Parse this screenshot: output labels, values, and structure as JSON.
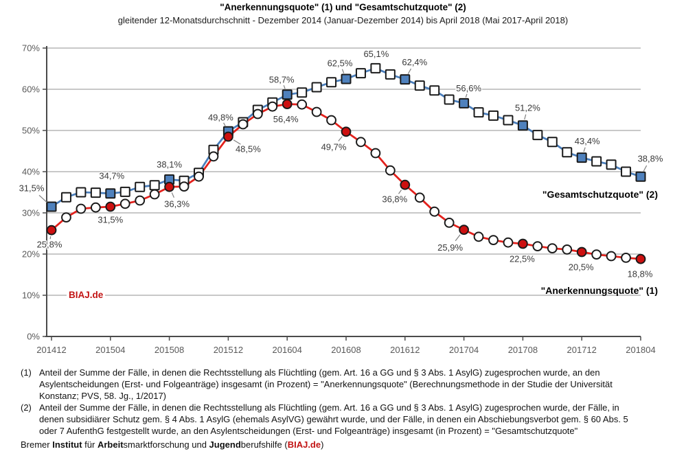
{
  "title": "\"Anerkennungsquote\" (1) und \"Gesamtschutzquote\" (2)",
  "subtitle": "gleitender 12-Monatsdurchschnitt - Dezember 2014 (Januar-Dezember 2014) bis April 2018 (Mai 2017-April 2018)",
  "watermark": "BIAJ.de",
  "series_labels": {
    "gesamtschutzquote": "\"Gesamtschutzquote\" (2)",
    "anerkennungsquote": "\"Anerkennungsquote\" (1)"
  },
  "colors": {
    "blue_line": "#4a7ebb",
    "blue_fill": "#4f81bd",
    "red_line": "#e3211c",
    "red_fill": "#cd1010",
    "grid": "#a6a6a6",
    "axis": "#4a4a4a",
    "axis_text": "#595959",
    "label_text": "#3a3a3a",
    "accent_red": "#c21313"
  },
  "chart_data": {
    "type": "line",
    "x": [
      "201412",
      "201501",
      "201502",
      "201503",
      "201504",
      "201505",
      "201506",
      "201507",
      "201508",
      "201509",
      "201510",
      "201511",
      "201512",
      "201601",
      "201602",
      "201603",
      "201604",
      "201605",
      "201606",
      "201607",
      "201608",
      "201609",
      "201610",
      "201611",
      "201612",
      "201701",
      "201702",
      "201703",
      "201704",
      "201705",
      "201706",
      "201707",
      "201708",
      "201709",
      "201710",
      "201711",
      "201712",
      "201801",
      "201802",
      "201803",
      "201804"
    ],
    "x_tick_step": 4,
    "y_tick_labels": [
      "0%",
      "10%",
      "20%",
      "30%",
      "40%",
      "50%",
      "60%",
      "70%"
    ],
    "ylim": [
      0,
      70
    ],
    "grid": "horizontal",
    "legend_position": "inline-right",
    "series": [
      {
        "name": "\"Gesamtschutzquote\" (2)",
        "marker": "square",
        "line_color": "#4a7ebb",
        "fill_color": "#4f81bd",
        "values": [
          31.5,
          33.8,
          35.0,
          34.9,
          34.7,
          35.1,
          36.3,
          36.7,
          38.1,
          37.8,
          39.7,
          45.3,
          49.8,
          52.0,
          55.0,
          56.8,
          58.7,
          59.2,
          60.5,
          61.7,
          62.5,
          63.9,
          65.1,
          63.6,
          62.4,
          60.9,
          59.7,
          57.5,
          56.6,
          54.4,
          53.6,
          52.5,
          51.2,
          48.9,
          47.2,
          44.7,
          43.4,
          42.5,
          41.7,
          40.0,
          38.8
        ],
        "filled_indices": [
          0,
          4,
          8,
          12,
          16,
          20,
          24,
          28,
          32,
          36,
          40
        ],
        "labels": [
          {
            "i": 0,
            "text": "31,5%",
            "dx": -29,
            "dy": -27,
            "leader": true
          },
          {
            "i": 4,
            "text": "34,7%",
            "dx": 2,
            "dy": -26,
            "leader": false
          },
          {
            "i": 8,
            "text": "38,1%",
            "dx": 0,
            "dy": -22,
            "leader": false
          },
          {
            "i": 12,
            "text": "49,8%",
            "dx": -11,
            "dy": -20,
            "leader": true
          },
          {
            "i": 16,
            "text": "58,7%",
            "dx": -8,
            "dy": -22,
            "leader": true
          },
          {
            "i": 20,
            "text": "62,5%",
            "dx": -9,
            "dy": -23,
            "leader": true
          },
          {
            "i": 22,
            "text": "65,1%",
            "dx": 1,
            "dy": -21,
            "leader": false
          },
          {
            "i": 24,
            "text": "62,4%",
            "dx": 14,
            "dy": -25,
            "leader": true
          },
          {
            "i": 28,
            "text": "56,6%",
            "dx": 7,
            "dy": -22,
            "leader": true
          },
          {
            "i": 32,
            "text": "51,2%",
            "dx": 7,
            "dy": -26,
            "leader": true
          },
          {
            "i": 36,
            "text": "43,4%",
            "dx": 8,
            "dy": -24,
            "leader": true
          },
          {
            "i": 40,
            "text": "38,8%",
            "dx": 14,
            "dy": -26,
            "leader": true
          }
        ]
      },
      {
        "name": "\"Anerkennungsquote\" (1)",
        "marker": "circle",
        "line_color": "#e3211c",
        "fill_color": "#cd1010",
        "values": [
          25.8,
          28.9,
          31.0,
          31.3,
          31.5,
          32.2,
          33.0,
          34.5,
          36.3,
          36.4,
          38.8,
          43.7,
          48.5,
          51.5,
          54.0,
          55.8,
          56.4,
          56.3,
          54.5,
          52.5,
          49.7,
          47.2,
          44.5,
          40.3,
          36.8,
          33.7,
          30.3,
          27.6,
          25.9,
          24.2,
          23.4,
          22.8,
          22.5,
          21.9,
          21.4,
          21.1,
          20.5,
          19.9,
          19.5,
          19.1,
          18.8
        ],
        "filled_indices": [
          0,
          4,
          8,
          12,
          16,
          20,
          24,
          28,
          32,
          36,
          40
        ],
        "labels": [
          {
            "i": 0,
            "text": "25,8%",
            "dx": -3,
            "dy": 21,
            "leader": true
          },
          {
            "i": 4,
            "text": "31,5%",
            "dx": 0,
            "dy": 19,
            "leader": false
          },
          {
            "i": 8,
            "text": "36,3%",
            "dx": 11,
            "dy": 25,
            "leader": true
          },
          {
            "i": 12,
            "text": "48,5%",
            "dx": 29,
            "dy": 18,
            "leader": true
          },
          {
            "i": 16,
            "text": "56,4%",
            "dx": -2,
            "dy": 22,
            "leader": false
          },
          {
            "i": 20,
            "text": "49,7%",
            "dx": -18,
            "dy": 22,
            "leader": true
          },
          {
            "i": 24,
            "text": "36,8%",
            "dx": -15,
            "dy": 21,
            "leader": true
          },
          {
            "i": 28,
            "text": "25,9%",
            "dx": -20,
            "dy": 26,
            "leader": true
          },
          {
            "i": 32,
            "text": "22,5%",
            "dx": -1,
            "dy": 22,
            "leader": false
          },
          {
            "i": 36,
            "text": "20,5%",
            "dx": -1,
            "dy": 22,
            "leader": false
          },
          {
            "i": 40,
            "text": "18,8%",
            "dx": -1,
            "dy": 22,
            "leader": false
          }
        ]
      }
    ]
  },
  "footnotes": [
    {
      "marker": "(1)",
      "lines": [
        "Anteil der Summe der Fälle, in denen die Rechtsstellung als Flüchtling (gem. Art. 16 a GG und § 3 Abs. 1 AsylG) zugesprochen wurde, an den",
        "Asylentscheidungen (Erst- und Folgeanträge) insgesamt (in Prozent) = \"Anerkennungsquote\" (Berechnungsmethode in der Studie der Universität",
        "Konstanz; PVS, 58. Jg., 1/2017)"
      ]
    },
    {
      "marker": "(2)",
      "lines": [
        "Anteil der Summe der Fälle, in denen die Rechtsstellung als Flüchtling (gem. Art. 16 a GG und § 3 Abs. 1 AsylG) zugesprochen wurde, der Fälle, in",
        "denen subsidiärer Schutz gem. § 4 Abs. 1 AsylG (ehemals AsylVG) gewährt wurde, und der Fälle, in denen ein Abschiebungsverbot gem. § 60 Abs. 5",
        "oder 7 AufenthG festgestellt wurde, an den Asylentscheidungen (Erst- und Folgeanträge) insgesamt (in Prozent) = \"Gesamtschutzquote\""
      ]
    }
  ],
  "credit_segments": [
    {
      "text": "Bremer ",
      "bold": false,
      "red": false
    },
    {
      "text": "Institut",
      "bold": true,
      "red": false
    },
    {
      "text": " für ",
      "bold": false,
      "red": false
    },
    {
      "text": "Arbeit",
      "bold": true,
      "red": false
    },
    {
      "text": "smarktforschung und ",
      "bold": false,
      "red": false
    },
    {
      "text": "Jugend",
      "bold": true,
      "red": false
    },
    {
      "text": "berufshilfe (",
      "bold": false,
      "red": false
    },
    {
      "text": "BIAJ.de",
      "bold": true,
      "red": true
    },
    {
      "text": ")",
      "bold": false,
      "red": false
    }
  ]
}
